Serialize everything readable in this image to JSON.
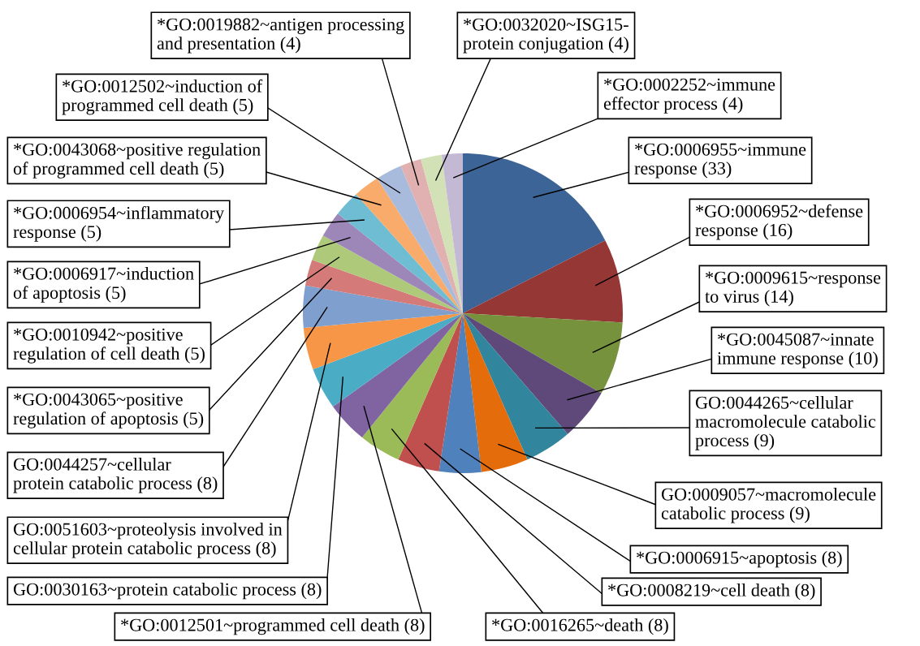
{
  "chart_data": {
    "type": "pie",
    "categories": [
      "*GO:0006955~immune\nresponse (33)",
      "*GO:0006952~defense\nresponse (16)",
      "*GO:0009615~response\nto virus (14)",
      "*GO:0045087~innate\nimmune response (10)",
      "GO:0044265~cellular\nmacromolecule catabolic\nprocess (9)",
      "GO:0009057~macromolecule\ncatabolic process (9)",
      "*GO:0006915~apoptosis (8)",
      "*GO:0008219~cell death (8)",
      "*GO:0016265~death (8)",
      "*GO:0012501~programmed cell death (8)",
      "GO:0030163~protein catabolic process (8)",
      "GO:0051603~proteolysis involved in\ncellular protein catabolic process (8)",
      "GO:0044257~cellular\nprotein catabolic process (8)",
      "*GO:0043065~positive\nregulation of apoptosis (5)",
      "*GO:0010942~positive\nregulation of cell death (5)",
      "*GO:0006917~induction\nof apoptosis (5)",
      "*GO:0006954~inflammatory\nresponse (5)",
      "*GO:0043068~positive regulation\nof programmed cell death (5)",
      "*GO:0012502~induction of\nprogrammed cell death (5)",
      "*GO:0019882~antigen processing\nand presentation (4)",
      "*GO:0032020~ISG15-\nprotein conjugation (4)",
      "*GO:0002252~immune\neffector process (4)"
    ],
    "values": [
      33,
      16,
      14,
      10,
      9,
      9,
      8,
      8,
      8,
      8,
      8,
      8,
      8,
      5,
      5,
      5,
      5,
      5,
      5,
      4,
      4,
      4
    ],
    "colors": [
      "#3c6496",
      "#953735",
      "#76923c",
      "#5f497a",
      "#31859c",
      "#e46c0a",
      "#4f81bd",
      "#c0504d",
      "#9bbb59",
      "#8064a2",
      "#4bacc6",
      "#f79646",
      "#7f9fcf",
      "#d47b79",
      "#afc97a",
      "#9d87b8",
      "#6fbdd3",
      "#f9ab6b",
      "#a9bbdc",
      "#e0b1b0",
      "#d2e1b6",
      "#c4b9d5"
    ]
  }
}
